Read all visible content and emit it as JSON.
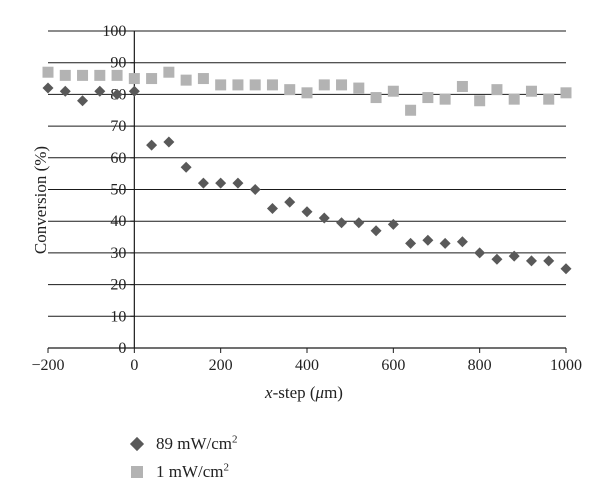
{
  "chart_data": {
    "type": "scatter",
    "title": "",
    "xlabel_italic": "x",
    "xlabel_rest": "-step (",
    "xlabel_mu": "μ",
    "xlabel_end": "m)",
    "ylabel": "Conversion (%)",
    "xlim": [
      -200,
      1000
    ],
    "ylim": [
      0,
      100
    ],
    "xticks": [
      -200,
      0,
      200,
      400,
      600,
      800,
      1000
    ],
    "xtick_labels": [
      "−200",
      "0",
      "200",
      "400",
      "600",
      "800",
      "1000"
    ],
    "yticks": [
      0,
      10,
      20,
      30,
      40,
      50,
      60,
      70,
      80,
      90,
      100
    ],
    "ytick_labels": [
      "0",
      "10",
      "20",
      "30",
      "40",
      "50",
      "60",
      "70",
      "80",
      "90",
      "100"
    ],
    "grid": "horizontal",
    "legend_placement": "bottom-left",
    "series": [
      {
        "name": "89 mW/cm2",
        "legend_base": "89 mW/cm",
        "legend_sup": "2",
        "marker": "diamond",
        "color": "#595959",
        "x": [
          -200,
          -160,
          -120,
          -80,
          -40,
          0,
          40,
          80,
          120,
          160,
          200,
          240,
          280,
          320,
          360,
          400,
          440,
          480,
          520,
          560,
          600,
          640,
          680,
          720,
          760,
          800,
          840,
          880,
          920,
          960,
          1000
        ],
        "y": [
          82,
          81,
          78,
          81,
          80,
          81,
          64,
          65,
          57,
          52,
          52,
          52,
          50,
          44,
          46,
          43,
          41,
          39.5,
          39.5,
          37,
          39,
          33,
          34,
          33,
          33.5,
          30,
          28,
          29,
          27.5,
          27.5,
          25
        ]
      },
      {
        "name": "1 mW/cm2",
        "legend_base": "1 mW/cm",
        "legend_sup": "2",
        "marker": "square",
        "color": "#b3b3b3",
        "x": [
          -200,
          -160,
          -120,
          -80,
          -40,
          0,
          40,
          80,
          120,
          160,
          200,
          240,
          280,
          320,
          360,
          400,
          440,
          480,
          520,
          560,
          600,
          640,
          680,
          720,
          760,
          800,
          840,
          880,
          920,
          960,
          1000
        ],
        "y": [
          87,
          86,
          86,
          86,
          86,
          85,
          85,
          87,
          84.5,
          85,
          83,
          83,
          83,
          83,
          81.5,
          80.5,
          83,
          83,
          82,
          79,
          81,
          75,
          79,
          78.5,
          82.5,
          78,
          81.5,
          78.5,
          81,
          78.5,
          80.5
        ]
      }
    ]
  }
}
